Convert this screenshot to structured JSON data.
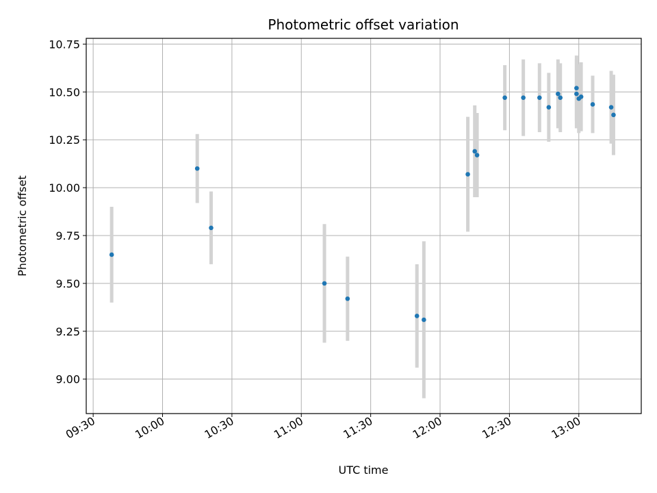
{
  "chart_data": {
    "type": "scatter",
    "title": "Photometric offset variation",
    "xlabel": "UTC time",
    "ylabel": "Photometric offset",
    "x_ticks": [
      "09:30",
      "10:00",
      "10:30",
      "11:00",
      "11:30",
      "12:00",
      "12:30",
      "13:00"
    ],
    "y_ticks": [
      "9.00",
      "9.25",
      "9.50",
      "9.75",
      "10.00",
      "10.25",
      "10.50",
      "10.75"
    ],
    "xlim": [
      "09:27",
      "13:27"
    ],
    "ylim": [
      8.82,
      10.78
    ],
    "grid": true,
    "colors": {
      "marker": "#1f77b4",
      "errorbar": "#d3d3d3",
      "grid": "#b0b0b0"
    },
    "points": [
      {
        "time": "09:38",
        "value": 9.65,
        "err": 0.25
      },
      {
        "time": "10:15",
        "value": 10.1,
        "err": 0.18
      },
      {
        "time": "10:21",
        "value": 9.79,
        "err": 0.19
      },
      {
        "time": "11:10",
        "value": 9.5,
        "err": 0.31
      },
      {
        "time": "11:20",
        "value": 9.42,
        "err": 0.22
      },
      {
        "time": "11:50",
        "value": 9.33,
        "err": 0.27
      },
      {
        "time": "11:53",
        "value": 9.31,
        "err": 0.41
      },
      {
        "time": "12:12",
        "value": 10.07,
        "err": 0.3
      },
      {
        "time": "12:15",
        "value": 10.19,
        "err": 0.24
      },
      {
        "time": "12:16",
        "value": 10.17,
        "err": 0.22
      },
      {
        "time": "12:28",
        "value": 10.47,
        "err": 0.17
      },
      {
        "time": "12:36",
        "value": 10.47,
        "err": 0.2
      },
      {
        "time": "12:43",
        "value": 10.47,
        "err": 0.18
      },
      {
        "time": "12:47",
        "value": 10.42,
        "err": 0.18
      },
      {
        "time": "12:51",
        "value": 10.49,
        "err": 0.18
      },
      {
        "time": "12:52",
        "value": 10.47,
        "err": 0.18
      },
      {
        "time": "12:59",
        "value": 10.52,
        "err": 0.17
      },
      {
        "time": "12:59",
        "value": 10.49,
        "err": 0.18
      },
      {
        "time": "13:00",
        "value": 10.465,
        "err": 0.18
      },
      {
        "time": "13:01",
        "value": 10.475,
        "err": 0.18
      },
      {
        "time": "13:06",
        "value": 10.435,
        "err": 0.15
      },
      {
        "time": "13:14",
        "value": 10.42,
        "err": 0.19
      },
      {
        "time": "13:15",
        "value": 10.38,
        "err": 0.21
      }
    ]
  }
}
